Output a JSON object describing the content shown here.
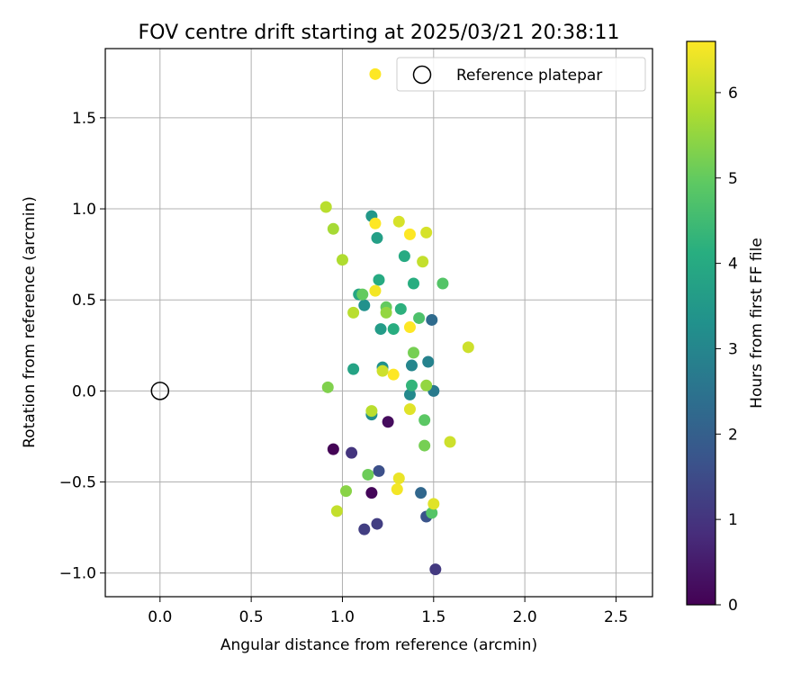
{
  "chart_data": {
    "type": "scatter",
    "title": "FOV centre drift starting at 2025/03/21 20:38:11",
    "xlabel": "Angular distance from reference (arcmin)",
    "ylabel": "Rotation from reference (arcmin)",
    "xlim": [
      -0.3,
      2.7
    ],
    "ylim": [
      -1.13,
      1.88
    ],
    "x_ticks": [
      0.0,
      0.5,
      1.0,
      1.5,
      2.0,
      2.5
    ],
    "x_tick_labels": [
      "0.0",
      "0.5",
      "1.0",
      "1.5",
      "2.0",
      "2.5"
    ],
    "y_ticks": [
      -1.0,
      -0.5,
      0.0,
      0.5,
      1.0,
      1.5
    ],
    "y_tick_labels": [
      "−1.0",
      "−0.5",
      "0.0",
      "0.5",
      "1.0",
      "1.5"
    ],
    "grid": true,
    "legend": {
      "placement": "top-right",
      "entries": [
        {
          "label": "",
          "marker": "filled-circle",
          "color": "#fde725"
        },
        {
          "label": "Reference platepar",
          "marker": "hollow-circle",
          "color": "#000000"
        }
      ]
    },
    "reference_point": {
      "x": 0.0,
      "y": 0.0
    },
    "colorbar": {
      "label": "Hours from first FF file",
      "colormap": "viridis",
      "min": 0,
      "max": 6.6,
      "ticks": [
        0,
        1,
        2,
        3,
        4,
        5,
        6
      ],
      "tick_labels": [
        "0",
        "1",
        "2",
        "3",
        "4",
        "5",
        "6"
      ]
    },
    "points": [
      {
        "x": 0.95,
        "y": -0.32,
        "h": 0.05
      },
      {
        "x": 1.16,
        "y": -0.56,
        "h": 0.1
      },
      {
        "x": 1.25,
        "y": -0.17,
        "h": 0.2
      },
      {
        "x": 1.05,
        "y": -0.34,
        "h": 1.0
      },
      {
        "x": 1.12,
        "y": -0.76,
        "h": 1.2
      },
      {
        "x": 1.19,
        "y": -0.73,
        "h": 1.2
      },
      {
        "x": 1.51,
        "y": -0.98,
        "h": 1.1
      },
      {
        "x": 1.2,
        "y": -0.44,
        "h": 1.6
      },
      {
        "x": 1.46,
        "y": -0.69,
        "h": 1.7
      },
      {
        "x": 1.43,
        "y": -0.56,
        "h": 2.2
      },
      {
        "x": 1.49,
        "y": 0.39,
        "h": 2.3
      },
      {
        "x": 1.5,
        "y": 0.0,
        "h": 2.7
      },
      {
        "x": 1.47,
        "y": 0.16,
        "h": 2.9
      },
      {
        "x": 1.38,
        "y": 0.14,
        "h": 3.0
      },
      {
        "x": 1.37,
        "y": -0.02,
        "h": 3.1
      },
      {
        "x": 1.16,
        "y": -0.13,
        "h": 3.2
      },
      {
        "x": 1.22,
        "y": 0.13,
        "h": 3.3
      },
      {
        "x": 1.12,
        "y": 0.47,
        "h": 3.3
      },
      {
        "x": 1.21,
        "y": 0.34,
        "h": 3.6
      },
      {
        "x": 1.16,
        "y": 0.96,
        "h": 3.5
      },
      {
        "x": 1.19,
        "y": 0.84,
        "h": 3.7
      },
      {
        "x": 1.06,
        "y": 0.12,
        "h": 3.8
      },
      {
        "x": 1.09,
        "y": 0.53,
        "h": 3.9
      },
      {
        "x": 1.2,
        "y": 0.61,
        "h": 4.0
      },
      {
        "x": 1.34,
        "y": 0.74,
        "h": 4.0
      },
      {
        "x": 1.39,
        "y": 0.59,
        "h": 4.1
      },
      {
        "x": 1.28,
        "y": 0.34,
        "h": 4.1
      },
      {
        "x": 1.32,
        "y": 0.45,
        "h": 4.2
      },
      {
        "x": 1.38,
        "y": 0.03,
        "h": 4.3
      },
      {
        "x": 1.42,
        "y": 0.4,
        "h": 4.7
      },
      {
        "x": 1.55,
        "y": 0.59,
        "h": 4.8
      },
      {
        "x": 1.49,
        "y": -0.67,
        "h": 4.8
      },
      {
        "x": 1.45,
        "y": -0.16,
        "h": 4.9
      },
      {
        "x": 1.11,
        "y": 0.53,
        "h": 5.0
      },
      {
        "x": 1.24,
        "y": 0.46,
        "h": 5.0
      },
      {
        "x": 1.14,
        "y": -0.46,
        "h": 5.1
      },
      {
        "x": 1.45,
        "y": -0.3,
        "h": 5.2
      },
      {
        "x": 1.39,
        "y": 0.21,
        "h": 5.2
      },
      {
        "x": 0.92,
        "y": 0.02,
        "h": 5.3
      },
      {
        "x": 1.02,
        "y": -0.55,
        "h": 5.4
      },
      {
        "x": 1.24,
        "y": 0.43,
        "h": 5.5
      },
      {
        "x": 1.46,
        "y": 0.03,
        "h": 5.5
      },
      {
        "x": 0.95,
        "y": 0.89,
        "h": 5.7
      },
      {
        "x": 0.91,
        "y": 1.01,
        "h": 5.9
      },
      {
        "x": 1.0,
        "y": 0.72,
        "h": 5.8
      },
      {
        "x": 1.06,
        "y": 0.43,
        "h": 5.9
      },
      {
        "x": 1.16,
        "y": -0.11,
        "h": 5.9
      },
      {
        "x": 0.97,
        "y": -0.66,
        "h": 6.0
      },
      {
        "x": 1.44,
        "y": 0.71,
        "h": 6.0
      },
      {
        "x": 1.22,
        "y": 0.11,
        "h": 6.1
      },
      {
        "x": 1.59,
        "y": -0.28,
        "h": 6.1
      },
      {
        "x": 1.69,
        "y": 0.24,
        "h": 6.1
      },
      {
        "x": 1.46,
        "y": 0.87,
        "h": 6.2
      },
      {
        "x": 1.31,
        "y": 0.93,
        "h": 6.2
      },
      {
        "x": 1.5,
        "y": -0.62,
        "h": 6.3
      },
      {
        "x": 1.37,
        "y": -0.1,
        "h": 6.3
      },
      {
        "x": 1.31,
        "y": -0.48,
        "h": 6.4
      },
      {
        "x": 1.3,
        "y": -0.54,
        "h": 6.5
      },
      {
        "x": 1.18,
        "y": 0.55,
        "h": 6.5
      },
      {
        "x": 1.18,
        "y": 0.92,
        "h": 6.6
      },
      {
        "x": 1.28,
        "y": 0.09,
        "h": 6.6
      },
      {
        "x": 1.37,
        "y": 0.35,
        "h": 6.6
      },
      {
        "x": 1.37,
        "y": 0.86,
        "h": 6.6
      },
      {
        "x": 1.18,
        "y": 1.74,
        "h": 6.6
      }
    ]
  }
}
